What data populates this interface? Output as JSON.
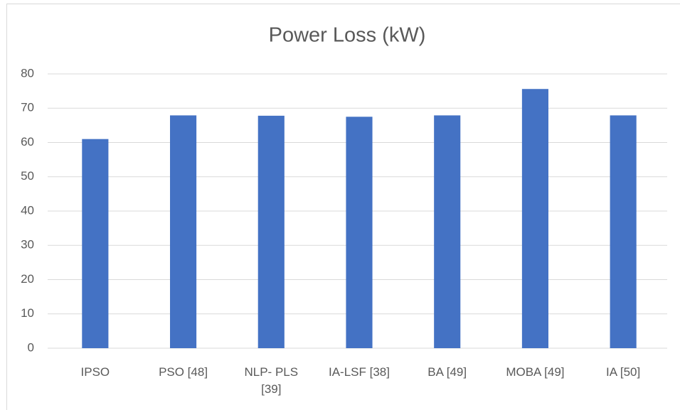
{
  "chart_data": {
    "type": "bar",
    "title": "Power Loss (kW)",
    "categories": [
      "IPSO",
      "PSO [48]",
      "NLP- PLS [39]",
      "IA-LSF [38]",
      "BA [49]",
      "MOBA [49]",
      "IA [50]"
    ],
    "values": [
      61,
      67.9,
      67.8,
      67.5,
      67.9,
      75.6,
      67.9
    ],
    "color": "#4472c4",
    "ylim": [
      0,
      80
    ],
    "yticks": [
      0,
      10,
      20,
      30,
      40,
      50,
      60,
      70,
      80
    ],
    "grid": true
  }
}
